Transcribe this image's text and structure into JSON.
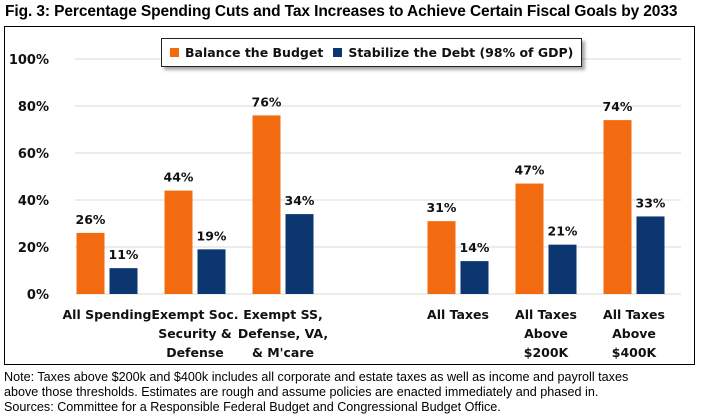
{
  "title": "Fig. 3: Percentage Spending Cuts and Tax Increases to Achieve Certain Fiscal Goals by 2033",
  "colors": {
    "balance": "#F26B10",
    "stabilize": "#0B3670",
    "gridline": "#D9D9D9",
    "text": "#111111"
  },
  "chart_data": {
    "type": "bar",
    "title": "Fig. 3: Percentage Spending Cuts and Tax Increases to Achieve Certain Fiscal Goals by 2033",
    "xlabel": "",
    "ylabel": "",
    "ylim": [
      0,
      100
    ],
    "yticks": [
      0,
      20,
      40,
      60,
      80,
      100
    ],
    "ytick_labels": [
      "0%",
      "20%",
      "40%",
      "60%",
      "80%",
      "100%"
    ],
    "grid": true,
    "legend_position": "top-center",
    "categories": [
      [
        "All Spending"
      ],
      [
        "Exempt Soc.",
        "Security &",
        "Defense"
      ],
      [
        "Exempt SS,",
        "Defense, VA,",
        "& M'care"
      ],
      [
        "All Taxes"
      ],
      [
        "All Taxes",
        "Above",
        "$200K"
      ],
      [
        "All Taxes",
        "Above",
        "$400K"
      ]
    ],
    "category_names": [
      "All Spending",
      "Exempt Soc. Security & Defense",
      "Exempt SS, Defense, VA, & M'care",
      "All Taxes",
      "All Taxes Above $200K",
      "All Taxes Above $400K"
    ],
    "series": [
      {
        "name": "Balance the Budget",
        "color": "#F26B10",
        "values": [
          26,
          44,
          76,
          31,
          47,
          74
        ],
        "labels": [
          "26%",
          "44%",
          "76%",
          "31%",
          "47%",
          "74%"
        ]
      },
      {
        "name": "Stabilize the Debt (98% of GDP)",
        "color": "#0B3670",
        "values": [
          11,
          19,
          34,
          14,
          21,
          33
        ],
        "labels": [
          "11%",
          "19%",
          "34%",
          "14%",
          "21%",
          "33%"
        ]
      }
    ]
  },
  "legend": {
    "items": [
      {
        "label": "Balance the Budget",
        "color": "#F26B10"
      },
      {
        "label": "Stabilize the Debt (98% of GDP)",
        "color": "#0B3670"
      }
    ]
  },
  "notes": [
    "Note: Taxes above $200k and $400k includes all corporate and estate taxes as well as income and payroll taxes",
    "above those thresholds. Estimates are rough and assume policies are enacted immediately and phased in.",
    "Sources: Committee for a Responsible Federal Budget and Congressional Budget Office."
  ]
}
